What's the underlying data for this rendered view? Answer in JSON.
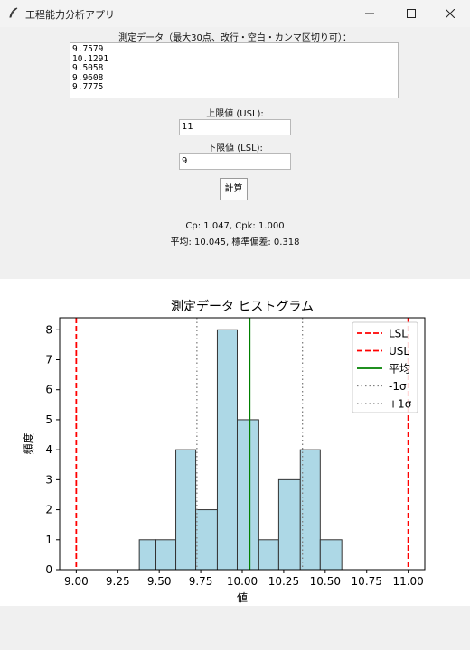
{
  "window": {
    "title": "工程能力分析アプリ"
  },
  "input": {
    "data_label": "測定データ（最大30点、改行・空白・カンマ区切り可）：",
    "data_lines": [
      "9.7579",
      "10.1291",
      "9.5058",
      "9.9608",
      "9.7775"
    ],
    "usl_label": "上限値 (USL):",
    "usl_value": "11",
    "lsl_label": "下限値 (LSL):",
    "lsl_value": "9",
    "calc_button": "計算"
  },
  "results": {
    "line1": "Cp: 1.047, Cpk: 1.000",
    "line2": "平均: 10.045, 標準偏差: 0.318"
  },
  "chart_data": {
    "type": "bar",
    "title": "測定データ ヒストグラム",
    "xlabel": "値",
    "ylabel": "頻度",
    "xlim": [
      8.9,
      11.1
    ],
    "ylim": [
      0,
      8.4
    ],
    "xticks": [
      "9.00",
      "9.25",
      "9.50",
      "9.75",
      "10.00",
      "10.25",
      "10.50",
      "10.75",
      "11.00"
    ],
    "yticks": [
      "0",
      "1",
      "2",
      "3",
      "4",
      "5",
      "6",
      "7",
      "8"
    ],
    "bins": [
      {
        "x0": 9.38,
        "x1": 9.48,
        "count": 1
      },
      {
        "x0": 9.48,
        "x1": 9.6,
        "count": 1
      },
      {
        "x0": 9.6,
        "x1": 9.72,
        "count": 4
      },
      {
        "x0": 9.72,
        "x1": 9.85,
        "count": 2
      },
      {
        "x0": 9.85,
        "x1": 9.97,
        "count": 8
      },
      {
        "x0": 9.97,
        "x1": 10.1,
        "count": 5
      },
      {
        "x0": 10.1,
        "x1": 10.22,
        "count": 1
      },
      {
        "x0": 10.22,
        "x1": 10.35,
        "count": 3
      },
      {
        "x0": 10.35,
        "x1": 10.47,
        "count": 4
      },
      {
        "x0": 10.47,
        "x1": 10.6,
        "count": 1
      }
    ],
    "lines": [
      {
        "name": "LSL",
        "x": 9.0,
        "color": "#ff0000",
        "style": "dashed"
      },
      {
        "name": "USL",
        "x": 11.0,
        "color": "#ff0000",
        "style": "dashed"
      },
      {
        "name": "平均",
        "x": 10.045,
        "color": "#008000",
        "style": "solid"
      },
      {
        "name": "-1σ",
        "x": 9.727,
        "color": "#808080",
        "style": "dotted"
      },
      {
        "name": "+1σ",
        "x": 10.363,
        "color": "#808080",
        "style": "dotted"
      }
    ],
    "bar_color": "#add8e6",
    "legend_position": "top-right"
  }
}
